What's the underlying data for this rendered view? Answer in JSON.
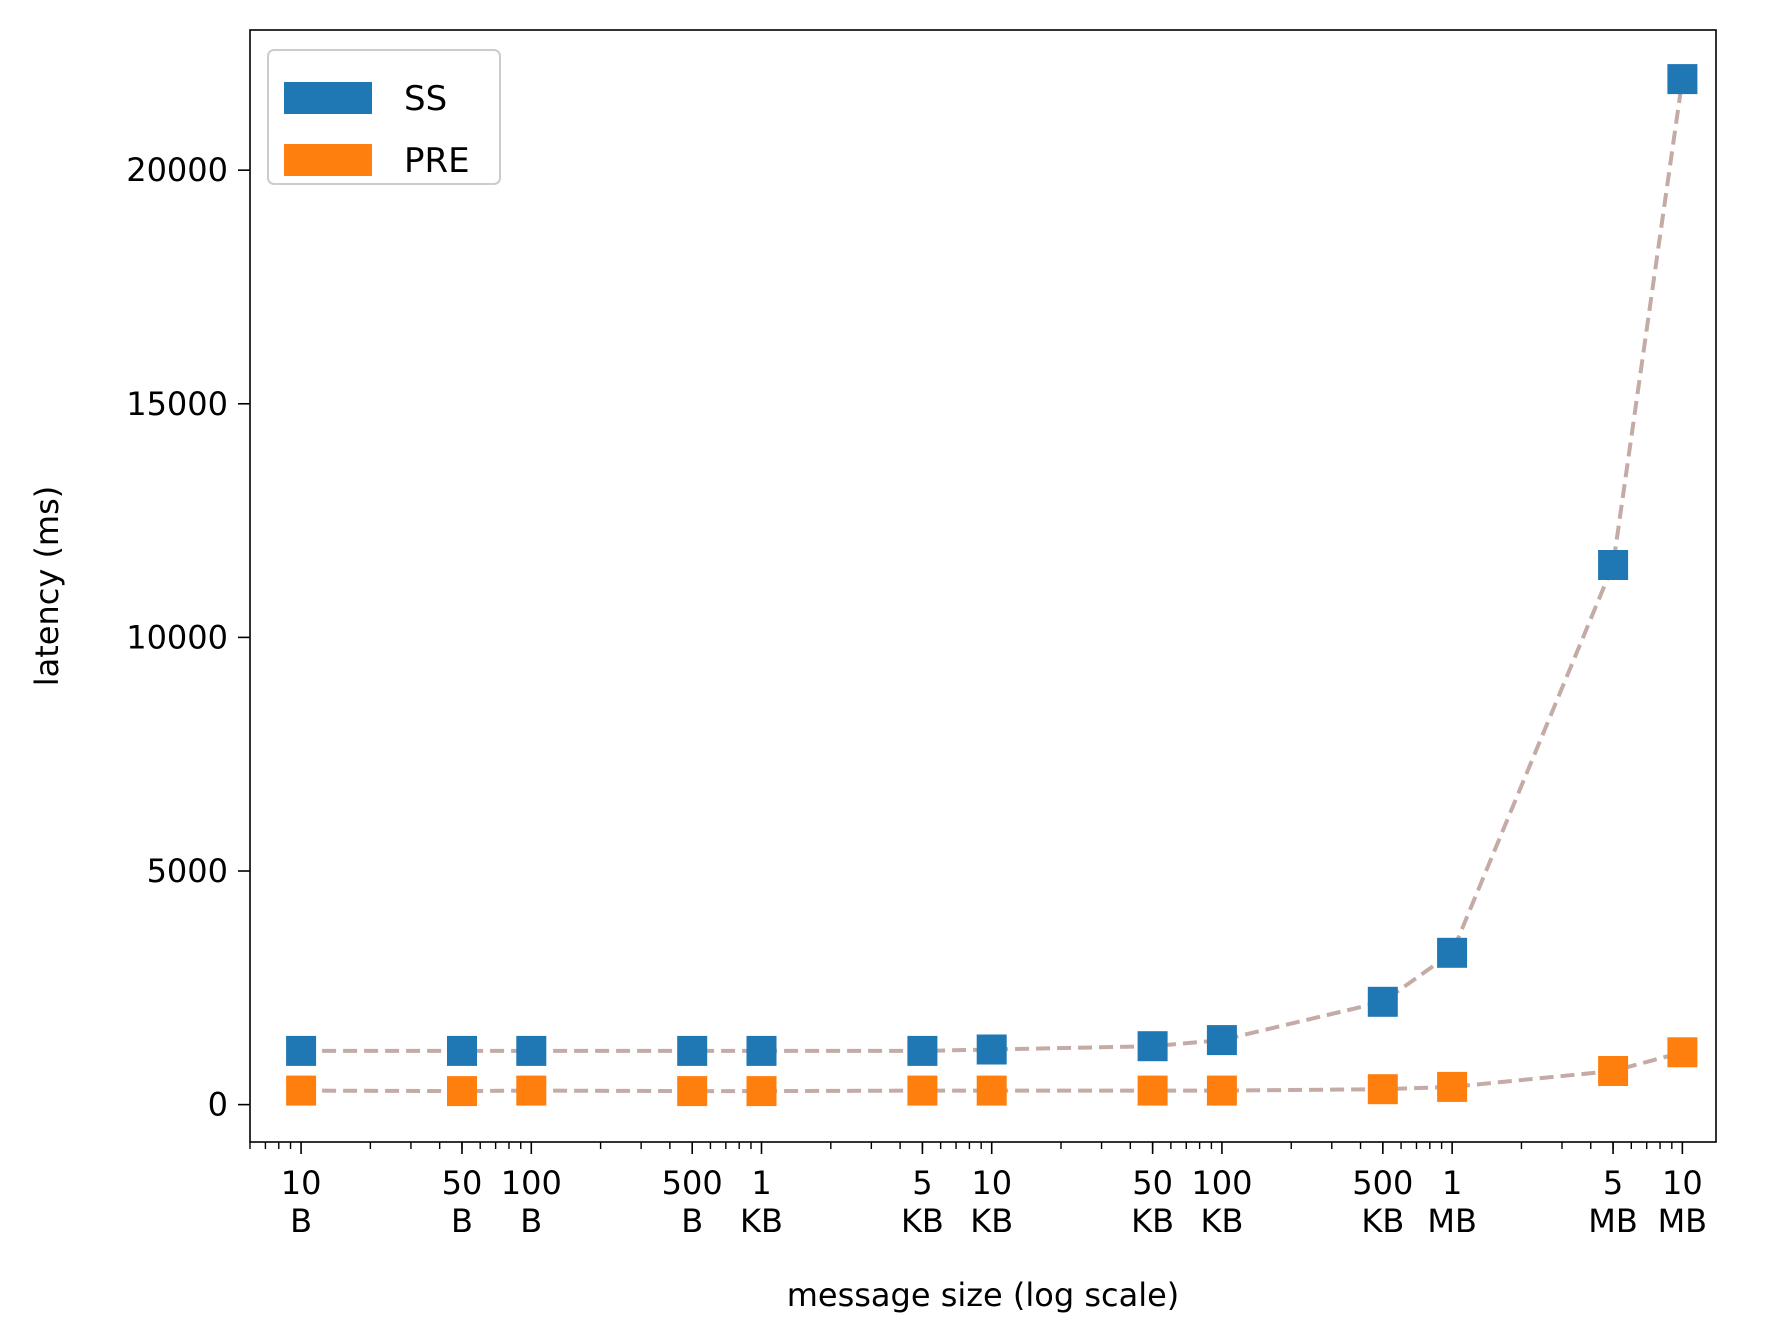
{
  "chart_data": {
    "type": "scatter",
    "xlabel": "message size (log scale)",
    "ylabel": "latency (ms)",
    "xscale": "log",
    "xlim": [
      6,
      14000000
    ],
    "ylim": [
      -800,
      23000
    ],
    "grid": false,
    "legend": "top-left",
    "x": [
      10,
      50,
      100,
      500,
      1000,
      5000,
      10000,
      50000,
      100000,
      500000,
      1000000,
      5000000,
      10000000
    ],
    "x_tick_labels": [
      [
        "10",
        "B"
      ],
      [
        "50",
        "B"
      ],
      [
        "100",
        "B"
      ],
      [
        "500",
        "B"
      ],
      [
        "1",
        "KB"
      ],
      [
        "5",
        "KB"
      ],
      [
        "10",
        "KB"
      ],
      [
        "50",
        "KB"
      ],
      [
        "100",
        "KB"
      ],
      [
        "500",
        "KB"
      ],
      [
        "1",
        "MB"
      ],
      [
        "5",
        "MB"
      ],
      [
        "10",
        "MB"
      ]
    ],
    "y_ticks": [
      0,
      5000,
      10000,
      15000,
      20000
    ],
    "y_tick_labels": [
      "0",
      "5000",
      "10000",
      "15000",
      "20000"
    ],
    "line_color": "#c4aba5",
    "series": [
      {
        "name": "SS",
        "color": "#1f77b4",
        "values": [
          1150,
          1150,
          1150,
          1150,
          1150,
          1150,
          1180,
          1250,
          1380,
          2200,
          3250,
          11550,
          21950
        ]
      },
      {
        "name": "PRE",
        "color": "#ff7f0e",
        "values": [
          300,
          290,
          300,
          290,
          290,
          300,
          300,
          300,
          300,
          330,
          380,
          720,
          1120
        ]
      }
    ]
  }
}
